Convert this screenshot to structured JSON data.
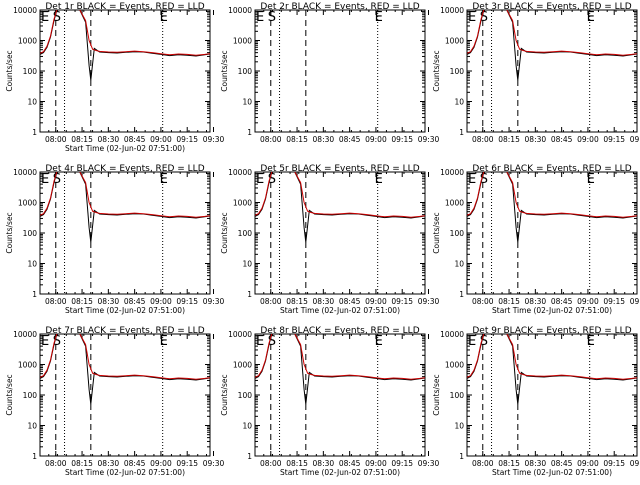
{
  "panels": [
    {
      "title": "Det 1r BLACK = Events, RED = LLD",
      "xlabel": "Start Time (02-Jun-02 07:51:00)",
      "ylabel": "Counts/sec",
      "has_data": true
    },
    {
      "title": "Det 2r BLACK = Events, RED = LLD",
      "xlabel": "",
      "ylabel": "Counts/sec",
      "has_data": false
    },
    {
      "title": "Det 3r BLACK = Events, RED = LLD",
      "xlabel": "",
      "ylabel": "Counts/sec",
      "has_data": true
    },
    {
      "title": "Det 4r BLACK = Events, RED = LLD",
      "xlabel": "Start Time (02-Jun-02 07:51:00)",
      "ylabel": "Counts/sec",
      "has_data": true
    },
    {
      "title": "Det 5r BLACK = Events, RED = LLD",
      "xlabel": "Start Time (02-Jun-02 07:51:00)",
      "ylabel": "Counts/sec",
      "has_data": true
    },
    {
      "title": "Det 6r BLACK = Events, RED = LLD",
      "xlabel": "Start Time (02-Jun-02 07:51:00)",
      "ylabel": "Counts/sec",
      "has_data": true
    },
    {
      "title": "Det 7r BLACK = Events, RED = LLD",
      "xlabel": "Start Time (02-Jun-02 07:51:00)",
      "ylabel": "Counts/sec",
      "has_data": true
    },
    {
      "title": "Det 8r BLACK = Events, RED = LLD",
      "xlabel": "Start Time (02-Jun-02 07:51:00)",
      "ylabel": "Counts/sec",
      "has_data": true
    },
    {
      "title": "Det 9r BLACK = Events, RED = LLD",
      "xlabel": "Start Time (02-Jun-02 07:51:00)",
      "ylabel": "Counts/sec",
      "has_data": true
    }
  ],
  "markers": [
    {
      "letter": "E",
      "time": "07:51"
    },
    {
      "letter": "S",
      "time": "08:00"
    }
  ],
  "chart_data": {
    "type": "line",
    "yscale": "log",
    "ylim": [
      1,
      10000
    ],
    "yticks": [
      1,
      10,
      100,
      1000,
      10000
    ],
    "ytick_labels": [
      "1",
      "10",
      "100",
      "1000",
      "10000"
    ],
    "xticks": [
      "08:00",
      "08:15",
      "08:30",
      "08:45",
      "09:00",
      "09:15",
      "09:30"
    ],
    "x_minutes_range": [
      0,
      97
    ],
    "vlines_dashed": [
      "08:00",
      "08:20",
      "09:01"
    ],
    "vlines_dotted": [
      "08:05",
      "09:01"
    ],
    "series": [
      {
        "name": "Events",
        "color": "#000000",
        "x": [
          "07:51",
          "07:53",
          "07:55",
          "07:57",
          "07:59",
          "08:01",
          "08:03",
          "08:08",
          "08:13",
          "08:17",
          "08:19",
          "08:20",
          "08:22",
          "08:25",
          "08:30",
          "08:35",
          "08:40",
          "08:45",
          "08:50",
          "08:55",
          "09:00",
          "09:05",
          "09:10",
          "09:15",
          "09:20",
          "09:25",
          "09:28"
        ],
        "values": [
          350,
          400,
          600,
          1300,
          4500,
          12000,
          12000,
          12000,
          12000,
          4000,
          150,
          50,
          550,
          420,
          400,
          390,
          410,
          430,
          420,
          380,
          350,
          320,
          340,
          330,
          310,
          340,
          360
        ]
      },
      {
        "name": "LLD",
        "color": "#cc0000",
        "x": [
          "07:51",
          "07:53",
          "07:55",
          "07:57",
          "07:59",
          "08:01",
          "08:03",
          "08:08",
          "08:13",
          "08:17",
          "08:19",
          "08:21",
          "08:23",
          "08:25",
          "08:30",
          "08:35",
          "08:40",
          "08:45",
          "08:50",
          "08:55",
          "09:00",
          "09:05",
          "09:10",
          "09:15",
          "09:20",
          "09:25",
          "09:28"
        ],
        "values": [
          380,
          430,
          650,
          1400,
          5000,
          12000,
          12000,
          12000,
          12000,
          4500,
          1000,
          520,
          470,
          440,
          420,
          410,
          430,
          450,
          430,
          400,
          370,
          340,
          360,
          350,
          330,
          350,
          370
        ]
      }
    ]
  }
}
